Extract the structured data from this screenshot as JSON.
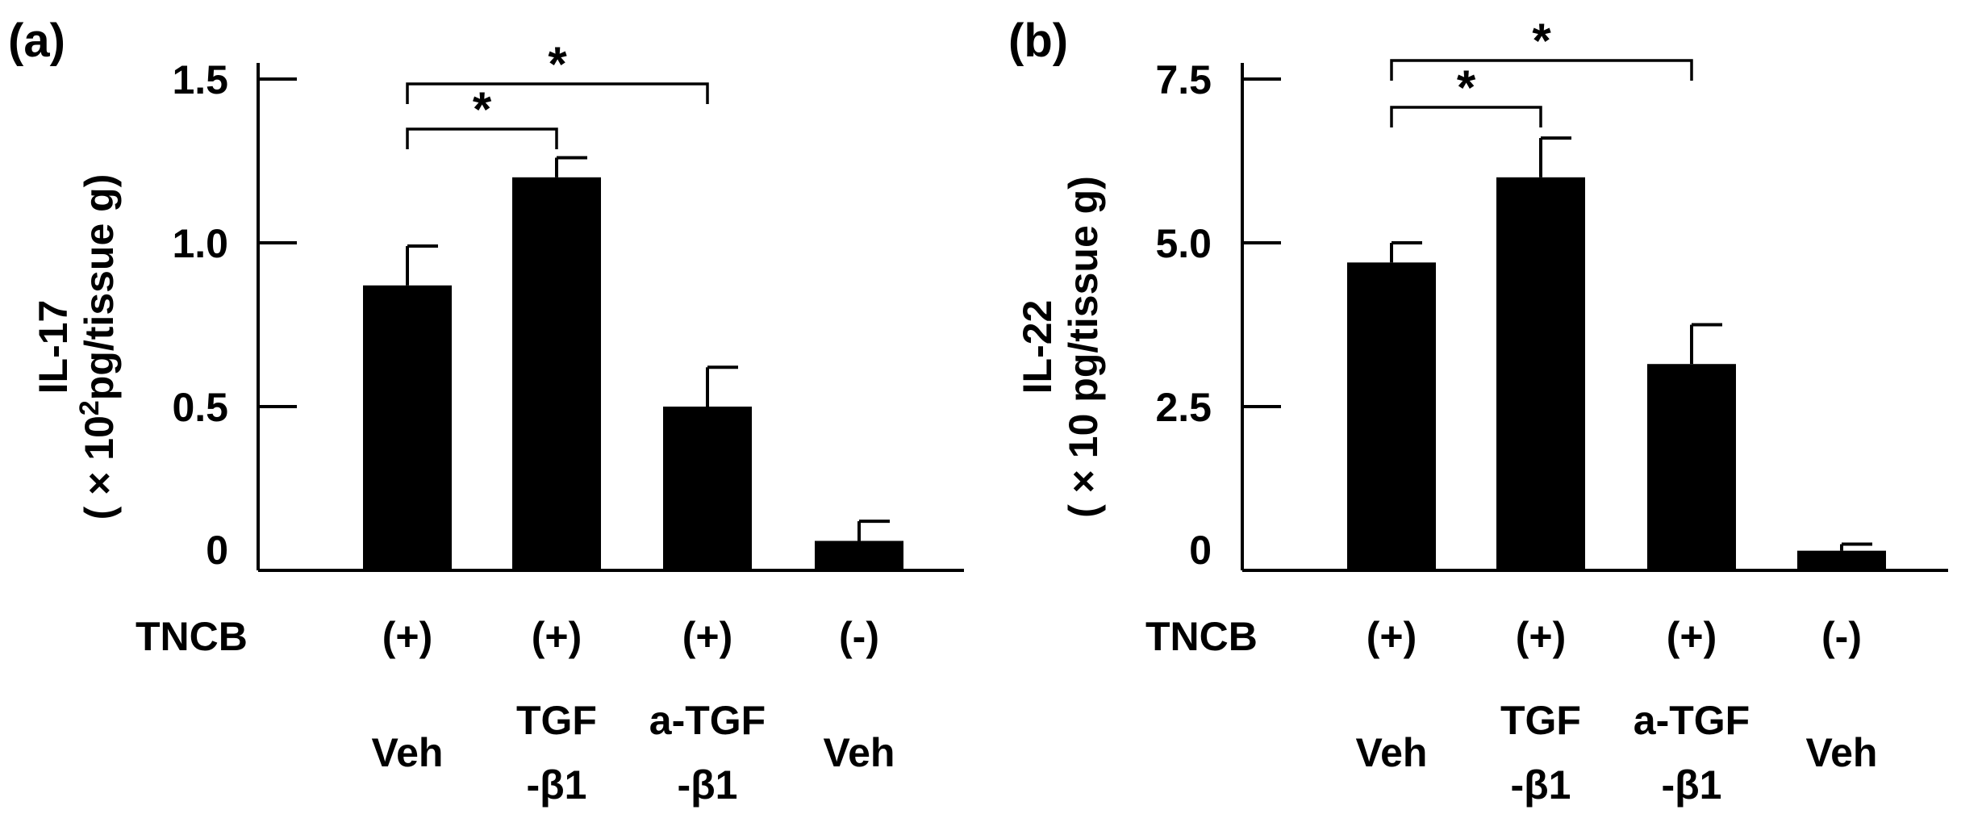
{
  "colors": {
    "bar": "#000000",
    "axis": "#000000",
    "background": "#ffffff"
  },
  "chart_data": [
    {
      "type": "bar",
      "panel_label": "(a)",
      "ylabel": "IL-17",
      "ylabel_unit": "( × 10",
      "ylabel_unit_sup": "2",
      "ylabel_unit_tail": "pg/tissue g)",
      "ylim": [
        0,
        1.5
      ],
      "yticks": [
        0,
        0.5,
        1.0,
        1.5
      ],
      "ytick_labels": [
        "0",
        "0.5",
        "1.0",
        "1.5"
      ],
      "row_label": "TNCB",
      "categories": [
        {
          "tncb": "(+)",
          "treatment": [
            "Veh"
          ]
        },
        {
          "tncb": "(+)",
          "treatment": [
            "TGF",
            "-β1"
          ]
        },
        {
          "tncb": "(+)",
          "treatment": [
            "a-TGF",
            "-β1"
          ]
        },
        {
          "tncb": "(-)",
          "treatment": [
            "Veh"
          ]
        }
      ],
      "values": [
        0.87,
        1.2,
        0.5,
        0.09
      ],
      "errors": [
        0.12,
        0.06,
        0.12,
        0.06
      ],
      "significance": [
        {
          "from": 0,
          "to": 1,
          "label": "*"
        },
        {
          "from": 0,
          "to": 2,
          "label": "*"
        }
      ]
    },
    {
      "type": "bar",
      "panel_label": "(b)",
      "ylabel": "IL-22",
      "ylabel_unit": "( × 10 pg/tissue g)",
      "ylabel_unit_sup": "",
      "ylabel_unit_tail": "",
      "ylim": [
        0,
        7.5
      ],
      "yticks": [
        0,
        2.5,
        5.0,
        7.5
      ],
      "ytick_labels": [
        "0",
        "2.5",
        "5.0",
        "7.5"
      ],
      "row_label": "TNCB",
      "categories": [
        {
          "tncb": "(+)",
          "treatment": [
            "Veh"
          ]
        },
        {
          "tncb": "(+)",
          "treatment": [
            "TGF",
            "-β1"
          ]
        },
        {
          "tncb": "(+)",
          "treatment": [
            "a-TGF",
            "-β1"
          ]
        },
        {
          "tncb": "(-)",
          "treatment": [
            "Veh"
          ]
        }
      ],
      "values": [
        4.7,
        6.0,
        3.15,
        0.3
      ],
      "errors": [
        0.3,
        0.6,
        0.6,
        0.1
      ],
      "significance": [
        {
          "from": 0,
          "to": 1,
          "label": "*"
        },
        {
          "from": 0,
          "to": 2,
          "label": "*"
        }
      ]
    }
  ]
}
